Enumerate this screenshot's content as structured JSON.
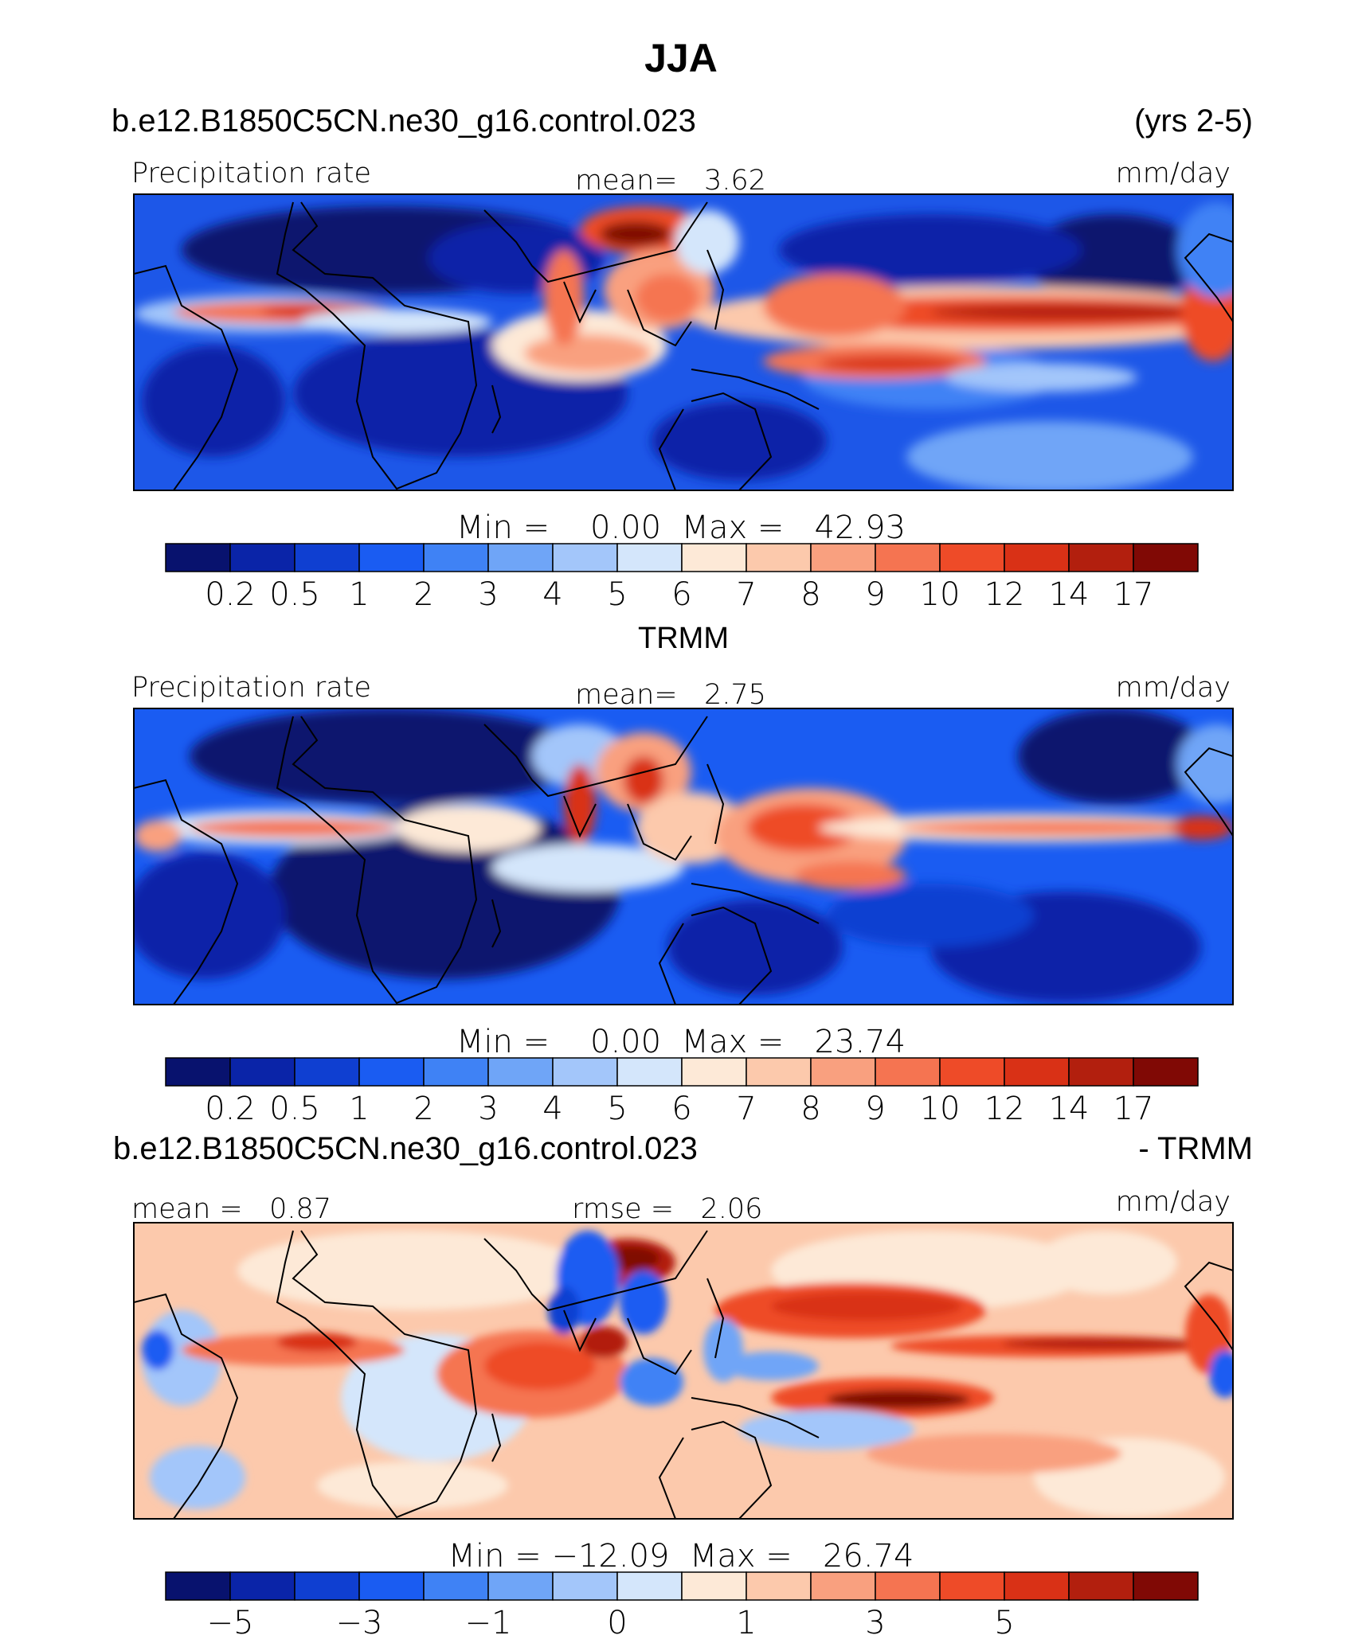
{
  "title": "JJA",
  "panel1": {
    "header_left": "b.e12.B1850C5CN.ne30_g16.control.023",
    "header_right": "(yrs 2-5)",
    "left_label": "Precipitation rate",
    "center_label": "mean=   3.62",
    "right_label": "mm/day",
    "minmax": "Min =    0.00  Max =   42.93"
  },
  "panel2": {
    "header_center": "TRMM",
    "left_label": "Precipitation rate",
    "center_label": "mean=   2.75",
    "right_label": "mm/day",
    "minmax": "Min =    0.00  Max =   23.74"
  },
  "panel3": {
    "header_left": "b.e12.B1850C5CN.ne30_g16.control.023",
    "header_right": "- TRMM",
    "left_label": "mean =   0.87",
    "center_label": "rmse =   2.06",
    "right_label": "mm/day",
    "minmax": "Min = −12.09  Max =   26.74"
  },
  "colorbar": {
    "colors": [
      "#08126e",
      "#0a24a8",
      "#0f3fd1",
      "#1a5cf2",
      "#3f82f5",
      "#6fa5f7",
      "#a3c6fa",
      "#d4e6fb",
      "#fde9d7",
      "#fcc9ac",
      "#f9a07f",
      "#f57451",
      "#ee4b28",
      "#d93116",
      "#b21f0e",
      "#800905"
    ],
    "precip_ticks": [
      "0.2",
      "0.5",
      "1",
      "2",
      "3",
      "4",
      "5",
      "6",
      "7",
      "8",
      "9",
      "10",
      "12",
      "14",
      "17"
    ],
    "diff_ticks": [
      "−5",
      "",
      "−3",
      "",
      "−1",
      "",
      "0",
      "",
      "1",
      "",
      "3",
      "",
      "5",
      "",
      ""
    ]
  },
  "chart_data": [
    {
      "type": "heatmap",
      "title": "JJA",
      "subtitle": "b.e12.B1850C5CN.ne30_g16.control.023 (yrs 2-5)",
      "variable": "Precipitation rate",
      "units": "mm/day",
      "mean": 3.62,
      "min": 0.0,
      "max": 42.93,
      "levels": [
        0.2,
        0.5,
        1,
        2,
        3,
        4,
        5,
        6,
        7,
        8,
        9,
        10,
        12,
        14,
        17
      ]
    },
    {
      "type": "heatmap",
      "subtitle": "TRMM",
      "variable": "Precipitation rate",
      "units": "mm/day",
      "mean": 2.75,
      "min": 0.0,
      "max": 23.74,
      "levels": [
        0.2,
        0.5,
        1,
        2,
        3,
        4,
        5,
        6,
        7,
        8,
        9,
        10,
        12,
        14,
        17
      ]
    },
    {
      "type": "heatmap",
      "subtitle": "b.e12.B1850C5CN.ne30_g16.control.023 - TRMM",
      "units": "mm/day",
      "mean": 0.87,
      "rmse": 2.06,
      "min": -12.09,
      "max": 26.74,
      "tick_labels": [
        "−5",
        "−3",
        "−1",
        "0",
        "1",
        "3",
        "5"
      ]
    }
  ]
}
